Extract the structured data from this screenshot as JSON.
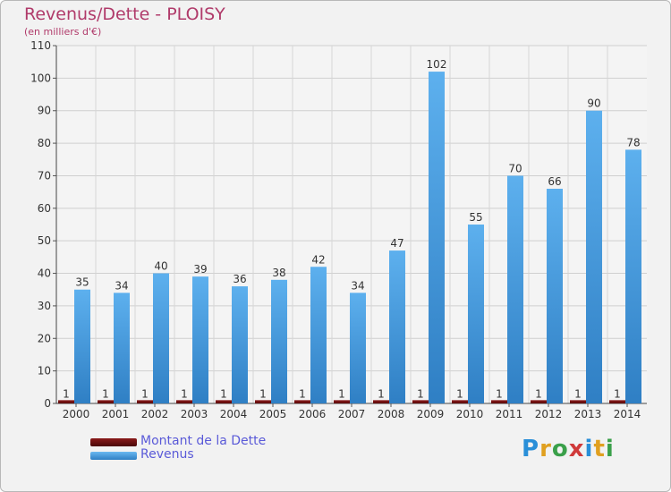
{
  "header": {
    "title": "Revenus/Dette - PLOISY",
    "subtitle": "(en milliers d'€)"
  },
  "legend": {
    "items": [
      {
        "label": "Montant de la Dette",
        "color": "#6b0f0f"
      },
      {
        "label": "Revenus",
        "color": "#4a9ee0"
      }
    ]
  },
  "logo": {
    "text": "Proxiti"
  },
  "chart_data": {
    "type": "bar",
    "title": "Revenus/Dette - PLOISY",
    "subtitle": "(en milliers d'€)",
    "categories": [
      "2000",
      "2001",
      "2002",
      "2003",
      "2004",
      "2005",
      "2006",
      "2007",
      "2008",
      "2009",
      "2010",
      "2011",
      "2012",
      "2013",
      "2014"
    ],
    "series": [
      {
        "name": "Montant de la Dette",
        "color": "#6b0f0f",
        "values": [
          1,
          1,
          1,
          1,
          1,
          1,
          1,
          1,
          1,
          1,
          1,
          1,
          1,
          1,
          1
        ]
      },
      {
        "name": "Revenus",
        "color": "#4a9ee0",
        "values": [
          35,
          34,
          40,
          39,
          36,
          38,
          42,
          34,
          47,
          102,
          55,
          70,
          66,
          90,
          78
        ]
      }
    ],
    "ylim": [
      0,
      110
    ],
    "yticks": [
      0,
      10,
      20,
      30,
      40,
      50,
      60,
      70,
      80,
      90,
      100,
      110
    ],
    "grid": true,
    "legend_position": "bottom-left"
  }
}
